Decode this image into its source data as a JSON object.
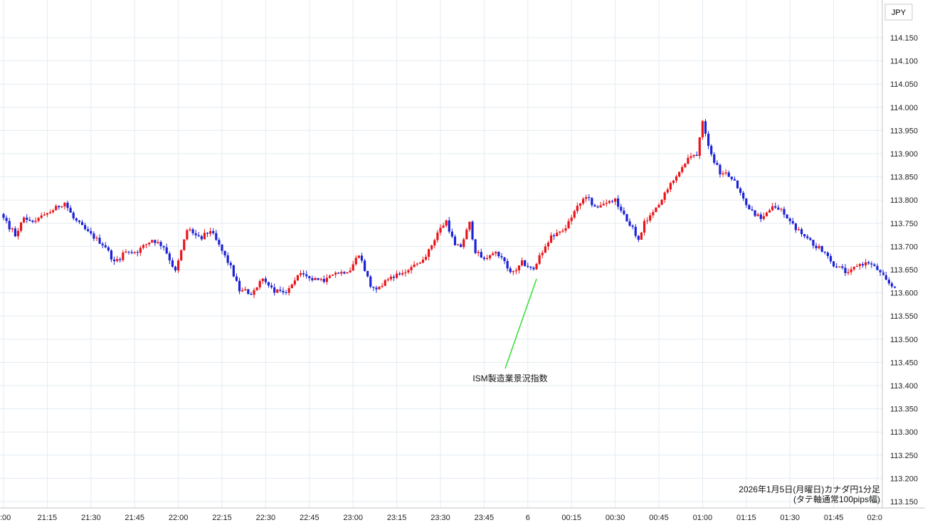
{
  "chart_data": {
    "type": "candlestick",
    "currency_label": "JPY",
    "title": "2026年1月5日(月曜日)カナダ円1分足",
    "subtitle": "(タテ軸通常100pips幅)",
    "y_ticks": [
      "114.150",
      "114.100",
      "114.050",
      "114.000",
      "113.950",
      "113.900",
      "113.850",
      "113.800",
      "113.750",
      "113.700",
      "113.650",
      "113.600",
      "113.550",
      "113.500",
      "113.450",
      "113.400",
      "113.350",
      "113.300",
      "113.250",
      "113.200",
      "113.150"
    ],
    "x_ticks": [
      ":00",
      "21:15",
      "21:30",
      "21:45",
      "22:00",
      "22:15",
      "22:30",
      "22:45",
      "23:00",
      "23:15",
      "23:30",
      "23:45",
      "6",
      "00:15",
      "00:30",
      "00:45",
      "01:00",
      "01:15",
      "01:30",
      "01:45",
      "02:0"
    ],
    "ylim": [
      113.14,
      114.17
    ],
    "grid": true,
    "annotation": {
      "text": "ISM製造業景況指数",
      "minute_offset": 183
    },
    "colors": {
      "up": "#e8151b",
      "down": "#1b22d6",
      "grid": "#e3ecf2",
      "annotation_line": "#33dd33"
    },
    "keypoints": [
      [
        0,
        113.77
      ],
      [
        3,
        113.74
      ],
      [
        5,
        113.725
      ],
      [
        8,
        113.76
      ],
      [
        12,
        113.755
      ],
      [
        17,
        113.775
      ],
      [
        22,
        113.795
      ],
      [
        25,
        113.76
      ],
      [
        30,
        113.73
      ],
      [
        36,
        113.7
      ],
      [
        39,
        113.665
      ],
      [
        42,
        113.685
      ],
      [
        47,
        113.69
      ],
      [
        52,
        113.715
      ],
      [
        56,
        113.7
      ],
      [
        60,
        113.645
      ],
      [
        64,
        113.735
      ],
      [
        69,
        113.72
      ],
      [
        72,
        113.735
      ],
      [
        76,
        113.69
      ],
      [
        79,
        113.655
      ],
      [
        82,
        113.605
      ],
      [
        86,
        113.6
      ],
      [
        90,
        113.63
      ],
      [
        94,
        113.605
      ],
      [
        98,
        113.6
      ],
      [
        102,
        113.64
      ],
      [
        106,
        113.63
      ],
      [
        110,
        113.625
      ],
      [
        115,
        113.64
      ],
      [
        120,
        113.65
      ],
      [
        123,
        113.685
      ],
      [
        127,
        113.615
      ],
      [
        130,
        113.61
      ],
      [
        134,
        113.635
      ],
      [
        139,
        113.645
      ],
      [
        143,
        113.66
      ],
      [
        147,
        113.69
      ],
      [
        150,
        113.73
      ],
      [
        153,
        113.755
      ],
      [
        156,
        113.7
      ],
      [
        158,
        113.7
      ],
      [
        161,
        113.75
      ],
      [
        163,
        113.69
      ],
      [
        166,
        113.67
      ],
      [
        170,
        113.69
      ],
      [
        173,
        113.665
      ],
      [
        176,
        113.64
      ],
      [
        179,
        113.665
      ],
      [
        183,
        113.65
      ],
      [
        186,
        113.69
      ],
      [
        189,
        113.72
      ],
      [
        193,
        113.73
      ],
      [
        197,
        113.775
      ],
      [
        201,
        113.81
      ],
      [
        204,
        113.785
      ],
      [
        207,
        113.79
      ],
      [
        211,
        113.8
      ],
      [
        214,
        113.765
      ],
      [
        217,
        113.74
      ],
      [
        219,
        113.71
      ],
      [
        221,
        113.75
      ],
      [
        224,
        113.77
      ],
      [
        227,
        113.8
      ],
      [
        230,
        113.84
      ],
      [
        233,
        113.86
      ],
      [
        236,
        113.89
      ],
      [
        239,
        113.9
      ],
      [
        241,
        113.975
      ],
      [
        243,
        113.92
      ],
      [
        245,
        113.885
      ],
      [
        247,
        113.86
      ],
      [
        250,
        113.855
      ],
      [
        252,
        113.845
      ],
      [
        255,
        113.8
      ],
      [
        258,
        113.775
      ],
      [
        261,
        113.76
      ],
      [
        265,
        113.785
      ],
      [
        268,
        113.78
      ],
      [
        271,
        113.755
      ],
      [
        274,
        113.73
      ],
      [
        277,
        113.715
      ],
      [
        280,
        113.7
      ],
      [
        283,
        113.69
      ],
      [
        286,
        113.66
      ],
      [
        289,
        113.65
      ],
      [
        291,
        113.64
      ],
      [
        294,
        113.66
      ],
      [
        298,
        113.665
      ],
      [
        301,
        113.65
      ],
      [
        304,
        113.625
      ],
      [
        306,
        113.615
      ]
    ]
  }
}
